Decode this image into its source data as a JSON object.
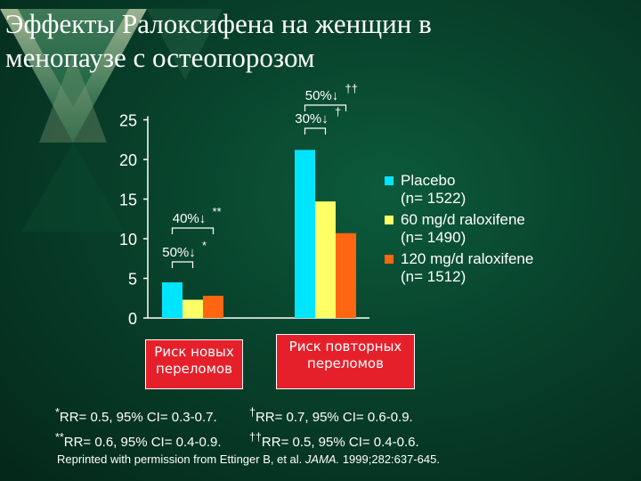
{
  "title": {
    "line1": "Эффекты Ралоксифена на женщин в",
    "line2": "менопаузе с остеопорозом"
  },
  "colors": {
    "background": "#064a30",
    "placebo": "#00e5ff",
    "raloxifene_60": "#ffff66",
    "raloxifene_120": "#ff6611",
    "category_box": "#e6202a"
  },
  "chart_data": {
    "type": "bar",
    "categories": [
      "Риск новых переломов",
      "Риск повторных переломов"
    ],
    "category_labels": [
      [
        "Риск новых",
        "переломов"
      ],
      [
        "Риск повторных",
        "переломов"
      ]
    ],
    "series": [
      {
        "name": "Placebo",
        "sub": "(n= 1522)",
        "values": [
          4.5,
          21.2
        ]
      },
      {
        "name": "60 mg/d raloxifene",
        "sub": "(n= 1490)",
        "values": [
          2.3,
          14.7
        ]
      },
      {
        "name": "120 mg/d raloxifene",
        "sub": "(n= 1512)",
        "values": [
          2.8,
          10.7
        ]
      }
    ],
    "ylim": [
      0,
      25
    ],
    "yticks": [
      0,
      5,
      10,
      15,
      20,
      25
    ],
    "ytick_labels": [
      "0",
      "5",
      "10",
      "15",
      "20",
      "25"
    ],
    "ylabel": "",
    "xlabel": "",
    "grid": false,
    "legend_position": "right",
    "annotations": [
      {
        "text": "50%↓",
        "mark": "*",
        "bracket": [
          0,
          0,
          0,
          1
        ]
      },
      {
        "text": "40%↓",
        "mark": "**",
        "bracket": [
          0,
          0,
          0,
          2
        ]
      },
      {
        "text": "30%↓",
        "mark": "†",
        "bracket": [
          1,
          0,
          1,
          1
        ]
      },
      {
        "text": "50%↓",
        "mark": "††",
        "bracket": [
          1,
          0,
          1,
          2
        ]
      }
    ]
  },
  "notes": {
    "row1": {
      "left_mark": "*",
      "left": "RR= 0.5, 95% CI= 0.3-0.7.",
      "right_mark": "†",
      "right": "RR= 0.7, 95% CI= 0.6-0.9."
    },
    "row2": {
      "left_mark": "**",
      "left": "RR= 0.6, 95% CI= 0.4-0.9.",
      "right_mark": "††",
      "right": "RR= 0.5, 95% CI= 0.4-0.6."
    }
  },
  "reprint": {
    "prefix": "Reprinted with permission from Ettinger B, et al.",
    "journal": "JAMA.",
    "suffix": "1999;282:637-645."
  }
}
